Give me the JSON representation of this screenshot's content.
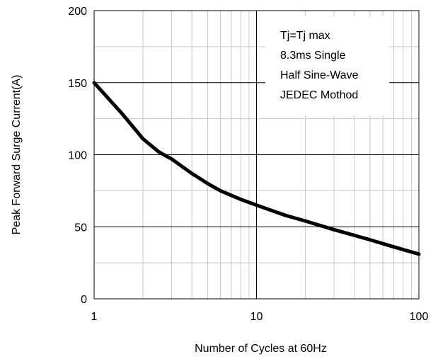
{
  "chart_data": {
    "type": "line",
    "title": "",
    "xlabel": "Number of Cycles at 60Hz",
    "ylabel": "Peak Forward Surge Current(A)",
    "x_scale": "log",
    "xlim": [
      1,
      100
    ],
    "ylim": [
      0,
      200
    ],
    "x_ticks": [
      1,
      10,
      100
    ],
    "x_tick_labels": [
      "1",
      "10",
      "100"
    ],
    "y_ticks": [
      0,
      50,
      100,
      150,
      200
    ],
    "y_tick_labels": [
      "0",
      "50",
      "100",
      "150",
      "200"
    ],
    "y_minor_gridlines": [
      25,
      75,
      125,
      175
    ],
    "grid": true,
    "annotation_lines": [
      "Tj=Tj max",
      "8.3ms Single",
      "Half Sine-Wave",
      "JEDEC Mothod"
    ],
    "annotation_position": "top-right",
    "series": [
      {
        "x": [
          1,
          1.5,
          2,
          2.5,
          3,
          4,
          5,
          6,
          8,
          10,
          15,
          20,
          30,
          50,
          70,
          100
        ],
        "y": [
          150,
          128,
          111,
          102,
          97,
          87,
          80,
          75,
          69,
          65,
          58,
          54,
          48,
          41,
          36,
          31
        ],
        "color": "#000000"
      }
    ]
  }
}
